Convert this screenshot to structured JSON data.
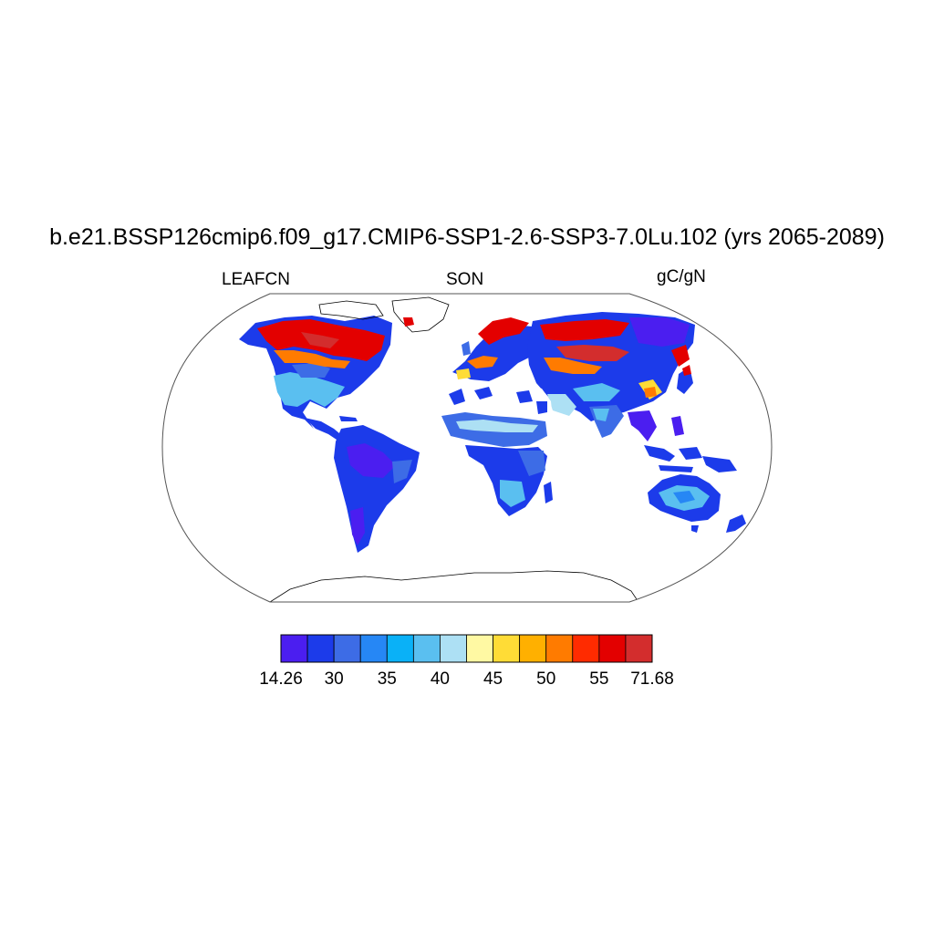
{
  "title": "b.e21.BSSP126cmip6.f09_g17.CMIP6-SSP1-2.6-SSP3-7.0Lu.102 (yrs 2065-2089)",
  "subtitle_left": "LEAFCN",
  "subtitle_center": "SON",
  "subtitle_right": "gC/gN",
  "colorbar": {
    "colors": [
      "#4b1ef0",
      "#1c3bea",
      "#3d6ce6",
      "#2687f5",
      "#0ab1f7",
      "#5abff0",
      "#ade0f4",
      "#fff9a3",
      "#ffdc36",
      "#ffb000",
      "#ff7b00",
      "#ff2b00",
      "#e30000",
      "#d32d2d"
    ],
    "labels": [
      "14.26",
      "30",
      "35",
      "40",
      "45",
      "50",
      "55",
      "71.68"
    ]
  },
  "chart_data": {
    "type": "heatmap",
    "variable": "LEAFCN",
    "season": "SON",
    "units": "gC/gN",
    "min": 14.26,
    "max": 71.68,
    "levels": [
      30,
      32.5,
      35,
      37.5,
      40,
      42.5,
      45,
      47.5,
      50,
      52.5,
      55,
      57.5,
      60
    ]
  }
}
